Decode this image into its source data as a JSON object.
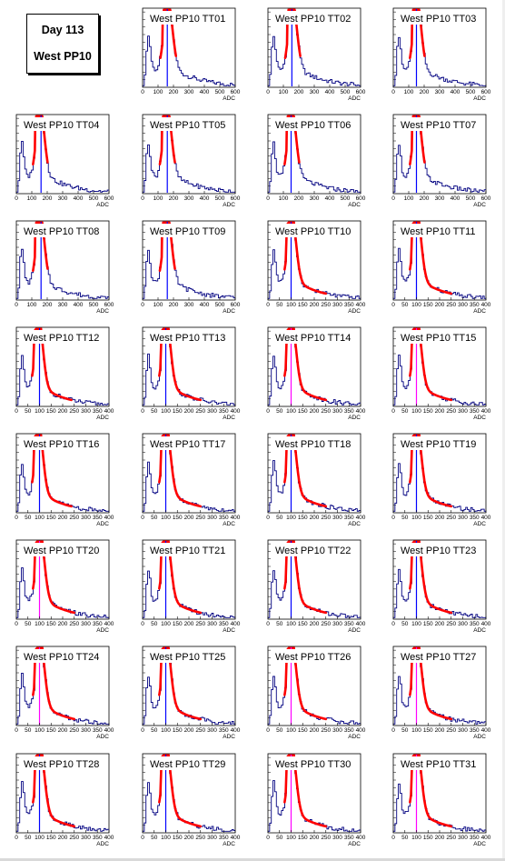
{
  "title_box": {
    "line1": "Day 113",
    "line2": "West PP10"
  },
  "colors": {
    "histogram": "#000080",
    "fit": "#ff0000",
    "marker_blue": "#0000ff",
    "marker_magenta": "#ff00ff"
  },
  "chart_data": [
    {
      "type": "histogram",
      "title": "West PP10 TT01",
      "xlabel": "ADC",
      "xlim": [
        0,
        600
      ],
      "xticks": [
        "0",
        "100",
        "200",
        "300",
        "400",
        "500",
        "600"
      ],
      "peak": 160,
      "marker": 160,
      "marker_color": "blue"
    },
    {
      "type": "histogram",
      "title": "West PP10 TT02",
      "xlabel": "ADC",
      "xlim": [
        0,
        600
      ],
      "xticks": [
        "0",
        "100",
        "200",
        "300",
        "400",
        "500",
        "600"
      ],
      "peak": 155,
      "marker": 155,
      "marker_color": "blue"
    },
    {
      "type": "histogram",
      "title": "West PP10 TT03",
      "xlabel": "ADC",
      "xlim": [
        0,
        600
      ],
      "xticks": [
        "0",
        "100",
        "200",
        "300",
        "400",
        "500",
        "600"
      ],
      "peak": 150,
      "marker": 150,
      "marker_color": "blue"
    },
    {
      "type": "histogram",
      "title": "West PP10 TT04",
      "xlabel": "ADC",
      "xlim": [
        0,
        600
      ],
      "xticks": [
        "0",
        "100",
        "200",
        "300",
        "400",
        "500",
        "600"
      ],
      "peak": 150,
      "marker": 160,
      "marker_color": "blue"
    },
    {
      "type": "histogram",
      "title": "West PP10 TT05",
      "xlabel": "ADC",
      "xlim": [
        0,
        600
      ],
      "xticks": [
        "0",
        "100",
        "200",
        "300",
        "400",
        "500",
        "600"
      ],
      "peak": 155,
      "marker": 160,
      "marker_color": "blue"
    },
    {
      "type": "histogram",
      "title": "West PP10 TT06",
      "xlabel": "ADC",
      "xlim": [
        0,
        600
      ],
      "xticks": [
        "0",
        "100",
        "200",
        "300",
        "400",
        "500",
        "600"
      ],
      "peak": 150,
      "marker": 150,
      "marker_color": "blue"
    },
    {
      "type": "histogram",
      "title": "West PP10 TT07",
      "xlabel": "ADC",
      "xlim": [
        0,
        600
      ],
      "xticks": [
        "0",
        "100",
        "200",
        "300",
        "400",
        "500",
        "600"
      ],
      "peak": 150,
      "marker": 150,
      "marker_color": "blue"
    },
    {
      "type": "histogram",
      "title": "West PP10 TT08",
      "xlabel": "ADC",
      "xlim": [
        0,
        600
      ],
      "xticks": [
        "0",
        "100",
        "200",
        "300",
        "400",
        "500",
        "600"
      ],
      "peak": 150,
      "marker": 160,
      "marker_color": "blue"
    },
    {
      "type": "histogram",
      "title": "West PP10 TT09",
      "xlabel": "ADC",
      "xlim": [
        0,
        600
      ],
      "xticks": [
        "0",
        "100",
        "200",
        "300",
        "400",
        "500",
        "600"
      ],
      "peak": 155,
      "marker": 160,
      "marker_color": "blue"
    },
    {
      "type": "histogram",
      "title": "West PP10 TT10",
      "xlabel": "ADC",
      "xlim": [
        0,
        400
      ],
      "xticks": [
        "0",
        "50",
        "100",
        "150",
        "200",
        "250",
        "300",
        "350",
        "400"
      ],
      "peak": 100,
      "marker": 100,
      "marker_color": "blue"
    },
    {
      "type": "histogram",
      "title": "West PP10 TT11",
      "xlabel": "ADC",
      "xlim": [
        0,
        400
      ],
      "xticks": [
        "0",
        "50",
        "100",
        "150",
        "200",
        "250",
        "300",
        "350",
        "400"
      ],
      "peak": 100,
      "marker": 100,
      "marker_color": "blue"
    },
    {
      "type": "histogram",
      "title": "West PP10 TT12",
      "xlabel": "ADC",
      "xlim": [
        0,
        400
      ],
      "xticks": [
        "0",
        "50",
        "100",
        "150",
        "200",
        "250",
        "300",
        "350",
        "400"
      ],
      "peak": 95,
      "marker": 100,
      "marker_color": "blue"
    },
    {
      "type": "histogram",
      "title": "West PP10 TT13",
      "xlabel": "ADC",
      "xlim": [
        0,
        400
      ],
      "xticks": [
        "0",
        "50",
        "100",
        "150",
        "200",
        "250",
        "300",
        "350",
        "400"
      ],
      "peak": 100,
      "marker": 100,
      "marker_color": "blue"
    },
    {
      "type": "histogram",
      "title": "West PP10 TT14",
      "xlabel": "ADC",
      "xlim": [
        0,
        400
      ],
      "xticks": [
        "0",
        "50",
        "100",
        "150",
        "200",
        "250",
        "300",
        "350",
        "400"
      ],
      "peak": 100,
      "marker": 100,
      "marker_color": "magenta"
    },
    {
      "type": "histogram",
      "title": "West PP10 TT15",
      "xlabel": "ADC",
      "xlim": [
        0,
        400
      ],
      "xticks": [
        "0",
        "50",
        "100",
        "150",
        "200",
        "250",
        "300",
        "350",
        "400"
      ],
      "peak": 100,
      "marker": 100,
      "marker_color": "magenta"
    },
    {
      "type": "histogram",
      "title": "West PP10 TT16",
      "xlabel": "ADC",
      "xlim": [
        0,
        400
      ],
      "xticks": [
        "0",
        "50",
        "100",
        "150",
        "200",
        "250",
        "300",
        "350",
        "400"
      ],
      "peak": 95,
      "marker": 100,
      "marker_color": "blue"
    },
    {
      "type": "histogram",
      "title": "West PP10 TT17",
      "xlabel": "ADC",
      "xlim": [
        0,
        400
      ],
      "xticks": [
        "0",
        "50",
        "100",
        "150",
        "200",
        "250",
        "300",
        "350",
        "400"
      ],
      "peak": 100,
      "marker": 100,
      "marker_color": "blue"
    },
    {
      "type": "histogram",
      "title": "West PP10 TT18",
      "xlabel": "ADC",
      "xlim": [
        0,
        400
      ],
      "xticks": [
        "0",
        "50",
        "100",
        "150",
        "200",
        "250",
        "300",
        "350",
        "400"
      ],
      "peak": 100,
      "marker": 100,
      "marker_color": "blue"
    },
    {
      "type": "histogram",
      "title": "West PP10 TT19",
      "xlabel": "ADC",
      "xlim": [
        0,
        400
      ],
      "xticks": [
        "0",
        "50",
        "100",
        "150",
        "200",
        "250",
        "300",
        "350",
        "400"
      ],
      "peak": 100,
      "marker": 100,
      "marker_color": "blue"
    },
    {
      "type": "histogram",
      "title": "West PP10 TT20",
      "xlabel": "ADC",
      "xlim": [
        0,
        400
      ],
      "xticks": [
        "0",
        "50",
        "100",
        "150",
        "200",
        "250",
        "300",
        "350",
        "400"
      ],
      "peak": 100,
      "marker": 100,
      "marker_color": "magenta"
    },
    {
      "type": "histogram",
      "title": "West PP10 TT21",
      "xlabel": "ADC",
      "xlim": [
        0,
        400
      ],
      "xticks": [
        "0",
        "50",
        "100",
        "150",
        "200",
        "250",
        "300",
        "350",
        "400"
      ],
      "peak": 100,
      "marker": 100,
      "marker_color": "blue"
    },
    {
      "type": "histogram",
      "title": "West PP10 TT22",
      "xlabel": "ADC",
      "xlim": [
        0,
        400
      ],
      "xticks": [
        "0",
        "50",
        "100",
        "150",
        "200",
        "250",
        "300",
        "350",
        "400"
      ],
      "peak": 100,
      "marker": 100,
      "marker_color": "blue"
    },
    {
      "type": "histogram",
      "title": "West PP10 TT23",
      "xlabel": "ADC",
      "xlim": [
        0,
        400
      ],
      "xticks": [
        "0",
        "50",
        "100",
        "150",
        "200",
        "250",
        "300",
        "350",
        "400"
      ],
      "peak": 100,
      "marker": 100,
      "marker_color": "blue"
    },
    {
      "type": "histogram",
      "title": "West PP10 TT24",
      "xlabel": "ADC",
      "xlim": [
        0,
        400
      ],
      "xticks": [
        "0",
        "50",
        "100",
        "150",
        "200",
        "250",
        "300",
        "350",
        "400"
      ],
      "peak": 100,
      "marker": 100,
      "marker_color": "magenta"
    },
    {
      "type": "histogram",
      "title": "West PP10 TT25",
      "xlabel": "ADC",
      "xlim": [
        0,
        400
      ],
      "xticks": [
        "0",
        "50",
        "100",
        "150",
        "200",
        "250",
        "300",
        "350",
        "400"
      ],
      "peak": 100,
      "marker": 100,
      "marker_color": "blue"
    },
    {
      "type": "histogram",
      "title": "West PP10 TT26",
      "xlabel": "ADC",
      "xlim": [
        0,
        400
      ],
      "xticks": [
        "0",
        "50",
        "100",
        "150",
        "200",
        "250",
        "300",
        "350",
        "400"
      ],
      "peak": 100,
      "marker": 100,
      "marker_color": "magenta"
    },
    {
      "type": "histogram",
      "title": "West PP10 TT27",
      "xlabel": "ADC",
      "xlim": [
        0,
        400
      ],
      "xticks": [
        "0",
        "50",
        "100",
        "150",
        "200",
        "250",
        "300",
        "350",
        "400"
      ],
      "peak": 100,
      "marker": 100,
      "marker_color": "magenta"
    },
    {
      "type": "histogram",
      "title": "West PP10 TT28",
      "xlabel": "ADC",
      "xlim": [
        0,
        400
      ],
      "xticks": [
        "0",
        "50",
        "100",
        "150",
        "200",
        "250",
        "300",
        "350",
        "400"
      ],
      "peak": 100,
      "marker": 100,
      "marker_color": "blue"
    },
    {
      "type": "histogram",
      "title": "West PP10 TT29",
      "xlabel": "ADC",
      "xlim": [
        0,
        400
      ],
      "xticks": [
        "0",
        "50",
        "100",
        "150",
        "200",
        "250",
        "300",
        "350",
        "400"
      ],
      "peak": 100,
      "marker": 100,
      "marker_color": "blue"
    },
    {
      "type": "histogram",
      "title": "West PP10 TT30",
      "xlabel": "ADC",
      "xlim": [
        0,
        400
      ],
      "xticks": [
        "0",
        "50",
        "100",
        "150",
        "200",
        "250",
        "300",
        "350",
        "400"
      ],
      "peak": 100,
      "marker": 100,
      "marker_color": "magenta"
    },
    {
      "type": "histogram",
      "title": "West PP10 TT31",
      "xlabel": "ADC",
      "xlim": [
        0,
        400
      ],
      "xticks": [
        "0",
        "50",
        "100",
        "150",
        "200",
        "250",
        "300",
        "350",
        "400"
      ],
      "peak": 100,
      "marker": 100,
      "marker_color": "magenta"
    }
  ]
}
